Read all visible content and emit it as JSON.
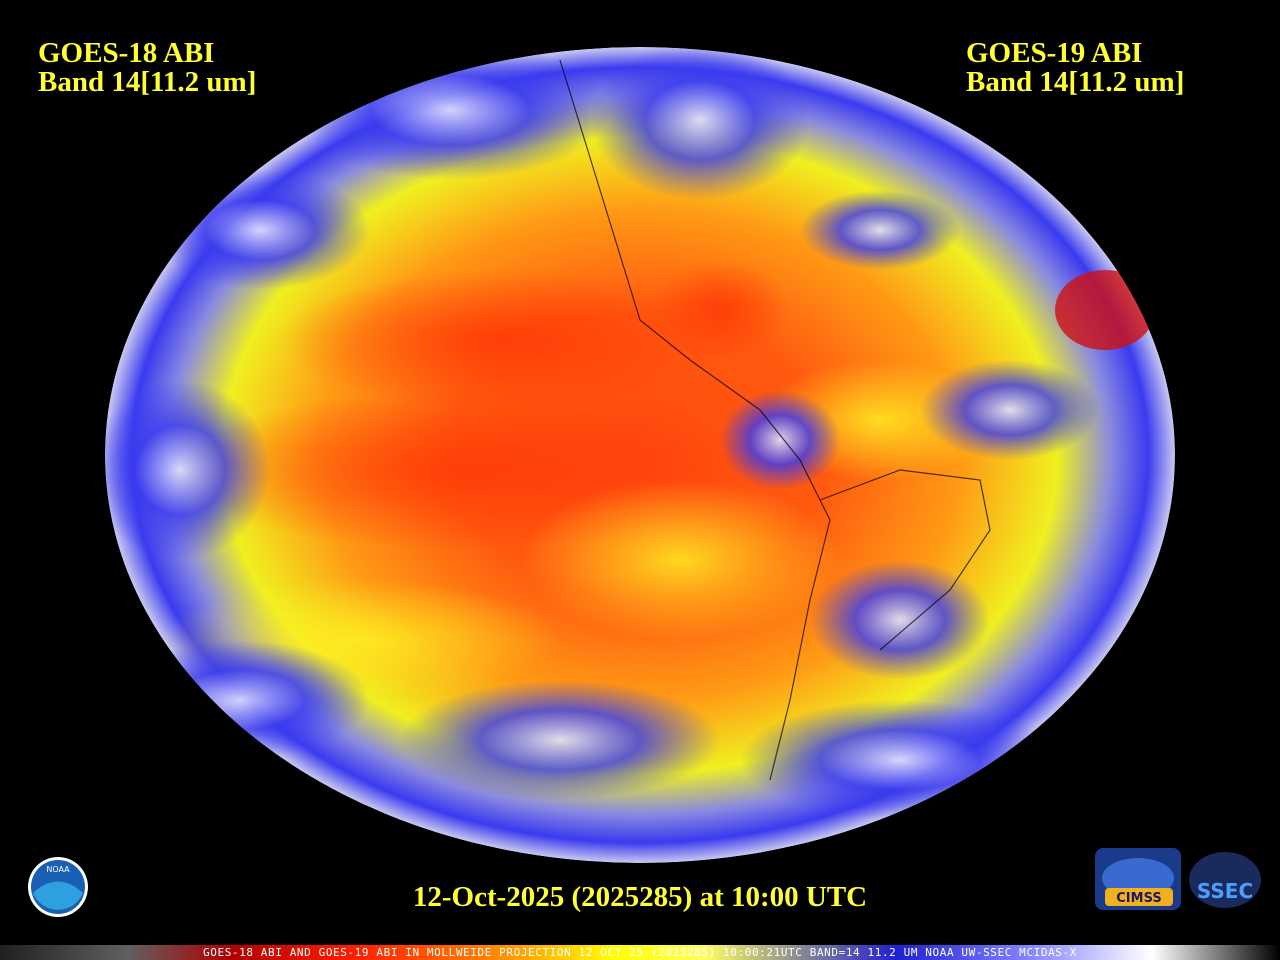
{
  "header": {
    "left": {
      "satellite": "GOES-18 ABI",
      "band": "Band 14[11.2 um]"
    },
    "right": {
      "satellite": "GOES-19 ABI",
      "band": "Band 14[11.2 um]"
    }
  },
  "timestamp": "12-Oct-2025 (2025285) at 10:00 UTC",
  "footer": {
    "caption": "GOES-18 ABI AND GOES-19 ABI IN MOLLWEIDE PROJECTION 12 OCT 25 (2025285) 10:00:21UTC BAND=14 11.2 UM NOAA UW-SSEC MCIDAS-X"
  },
  "logos": {
    "noaa": "NOAA",
    "cimss": "CIMSS",
    "ssec": "SSEC"
  }
}
